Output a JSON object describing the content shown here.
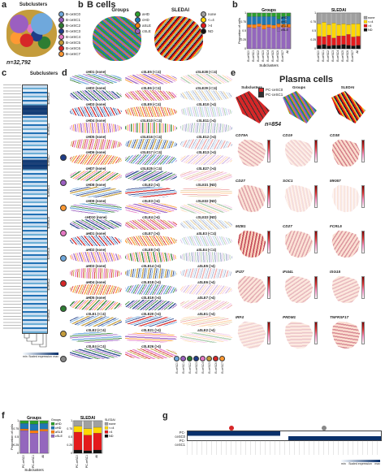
{
  "panels": {
    "a": {
      "label": "a",
      "title": "Subclusters",
      "n_cells": "n=32,792",
      "legend": [
        {
          "name": "B-ceSC0",
          "color": "#6fa8dc"
        },
        {
          "name": "B-ceSC1",
          "color": "#9b5fc0"
        },
        {
          "name": "B-ceSC2",
          "color": "#2e7d32"
        },
        {
          "name": "B-ceSC3",
          "color": "#1f3c88"
        },
        {
          "name": "B-ceSC4",
          "color": "#e377c2"
        },
        {
          "name": "B-ceSC5",
          "color": "#c49c3c"
        },
        {
          "name": "B-ceSC6",
          "color": "#d62728"
        },
        {
          "name": "B-ceSC7",
          "color": "#ff9933"
        }
      ],
      "cluster_labels": [
        "B-ceSC0",
        "B-ceSC1",
        "B-ceSC2",
        "B-ceSC3",
        "B-ceSC4",
        "B-ceSC5",
        "B-ceSC6",
        "B-ceSC7"
      ]
    },
    "b": {
      "label": "b",
      "header": "B cells",
      "groups_title": "Groups",
      "sledai_title": "SLEDAI",
      "groups_legend": [
        {
          "name": "aHD",
          "color": "#2ca02c"
        },
        {
          "name": "cHD",
          "color": "#1f77b4"
        },
        {
          "name": "aSLE",
          "color": "#ff7f0e"
        },
        {
          "name": "cSLE",
          "color": "#9467bd"
        }
      ],
      "sledai_legend": [
        {
          "name": "none",
          "color": "#a0a0a0"
        },
        {
          "name": "<=4",
          "color": "#ffd700"
        },
        {
          "name": ">4",
          "color": "#e41a1c"
        },
        {
          "name": "ND",
          "color": "#111111"
        }
      ]
    },
    "b2": {
      "label": "b",
      "groups_title": "Groups",
      "sledai_title": "SLEDAI",
      "ylabel": "Proportion of cells",
      "xlabel": "Subclusters"
    },
    "c": {
      "label": "c",
      "title": "Subclusters",
      "cluster_labels": [
        "B-ceSC3",
        "B-ceSC1",
        "B-ceSC7",
        "B-ceSC4",
        "B-ceSC0",
        "B-ceSC6",
        "B-ceSC2",
        "B-ceSC5"
      ],
      "circle_colors": [
        "#1f3c88",
        "#9b5fc0",
        "#ff9933",
        "#e377c2",
        "#6fa8dc",
        "#d62728",
        "#2e7d32",
        "#c49c3c",
        "#888888"
      ],
      "scale_min": "min",
      "scale_max": "max",
      "scale_label": "Scaled expression"
    },
    "d": {
      "label": "d",
      "cells": [
        "cHD1 (none)",
        "cSLE5 (<=4)",
        "cSLE28 (<=4)",
        "cHD2 (none)",
        "cSLE6 (<=4)",
        "cSLE29 (<=4)",
        "cHD3 (none)",
        "cSLE9 (<=4)",
        "cSLE10 (>4)",
        "cHD4 (none)",
        "cSLE10 (<=4)",
        "cSLE11 (>4)",
        "cHD5 (none)",
        "cSLE16 (<=4)",
        "cSLE12 (>4)",
        "cHD6 (none)",
        "cSLE17 (<=4)",
        "cSLE13 (>4)",
        "cHD7 (none)",
        "cSLE25 (<=4)",
        "cSLE27 (>4)",
        "cHD8 (none)",
        "cSLE2 (>4)",
        "cSLE31 (ND)",
        "cHD9 (none)",
        "cSLE3 (>4)",
        "cSLE32 (ND)",
        "cHD10 (none)",
        "cSLE4 (>4)",
        "cSLE33 (ND)",
        "aHD1 (none)",
        "cSLE7 (>4)",
        "aSLE3 (<=4)",
        "aHD2 (none)",
        "cSLE8 (>4)",
        "aSLE4 (<=4)",
        "aHD3 (none)",
        "cSLE14 (>4)",
        "aSLE5 (>4)",
        "aHD4 (none)",
        "cSLE18 (>4)",
        "aSLE6 (>4)",
        "aHD5 (none)",
        "cSLE19 (>4)",
        "aSLE7 (>4)",
        "cSLE1 (<=4)",
        "cSLE20 (>4)",
        "aSLE1 (>4)",
        "cSLE2 (<=4)",
        "cSLE21 (>4)",
        "aSLE2 (>4)",
        "cSLE4 (<=4)",
        "cSLE26 (>4)",
        ""
      ],
      "bottom_legend": [
        "B-ceSC0",
        "B-ceSC1",
        "B-ceSC2",
        "B-ceSC3",
        "B-ceSC4",
        "B-ceSC5",
        "B-ceSC6",
        "B-ceSC7"
      ]
    },
    "e": {
      "label": "e",
      "header": "Plasma cells",
      "subclusters_title": "Subclusters",
      "groups_title": "Groups",
      "sledai_title": "SLEDAI",
      "n_cells": "n=854",
      "subcluster_legend": [
        {
          "name": "PC-ceSC0",
          "color": "#d62728"
        },
        {
          "name": "PC-ceSC1",
          "color": "#333333"
        }
      ],
      "genes": [
        "CD79A",
        "CD19",
        "CD38",
        "CD27",
        "SOC1",
        "MKI67",
        "MZB1",
        "CD27",
        "FCRL5",
        "IFI27",
        "IFI44L",
        "ISG15",
        "IRF4",
        "PRDM1",
        "TNFRSF17"
      ]
    },
    "f": {
      "label": "f",
      "groups_title": "Groups",
      "sledai_title": "SLEDAI",
      "ylabel": "Proportion of cells",
      "xlabel": "Subclusters",
      "groups_legend_title": "Groups",
      "sledai_legend_title": "SLEDAI",
      "groups_legend": [
        {
          "name": "aHD",
          "color": "#2ca02c"
        },
        {
          "name": "cHD",
          "color": "#1f77b4"
        },
        {
          "name": "aSLE",
          "color": "#ff7f0e"
        },
        {
          "name": "cSLE",
          "color": "#9467bd"
        }
      ],
      "sledai_legend": [
        {
          "name": "none",
          "color": "#a0a0a0"
        },
        {
          "name": "<=4",
          "color": "#ffd700"
        },
        {
          "name": ">4",
          "color": "#e41a1c"
        },
        {
          "name": "ND",
          "color": "#111111"
        }
      ]
    },
    "g": {
      "label": "g",
      "row_labels": [
        "PC-ceSC0",
        "PC-ceSC1"
      ],
      "scale_min": "min",
      "scale_max": "max",
      "scale_label": "Scaled expression"
    }
  },
  "chart_data": [
    {
      "type": "bar",
      "panel": "b-groups",
      "title": "Groups",
      "ylabel": "Proportion of cells",
      "xlabel": "Subclusters",
      "ylim": [
        0,
        1
      ],
      "categories": [
        "B-ceSC0",
        "B-ceSC1",
        "B-ceSC2",
        "B-ceSC3",
        "B-ceSC4",
        "B-ceSC5",
        "B-ceSC6",
        "B-ceSC7",
        "All"
      ],
      "series": [
        {
          "name": "cSLE",
          "color": "#9467bd",
          "values": [
            0.6,
            0.58,
            0.62,
            0.55,
            0.6,
            0.57,
            0.64,
            0.6,
            0.6
          ]
        },
        {
          "name": "aSLE",
          "color": "#ff7f0e",
          "values": [
            0.08,
            0.1,
            0.08,
            0.12,
            0.08,
            0.09,
            0.06,
            0.09,
            0.09
          ]
        },
        {
          "name": "cHD",
          "color": "#1f77b4",
          "values": [
            0.22,
            0.22,
            0.2,
            0.23,
            0.22,
            0.24,
            0.2,
            0.21,
            0.22
          ]
        },
        {
          "name": "aHD",
          "color": "#2ca02c",
          "values": [
            0.1,
            0.1,
            0.1,
            0.1,
            0.1,
            0.1,
            0.1,
            0.1,
            0.09
          ]
        }
      ]
    },
    {
      "type": "bar",
      "panel": "b-sledai",
      "title": "SLEDAI",
      "ylim": [
        0,
        1
      ],
      "categories": [
        "B-ceSC0",
        "B-ceSC1",
        "B-ceSC2",
        "B-ceSC3",
        "B-ceSC4",
        "B-ceSC5",
        "B-ceSC6",
        "B-ceSC7",
        "All"
      ],
      "series": [
        {
          "name": "ND",
          "color": "#111111",
          "values": [
            0.1,
            0.12,
            0.08,
            0.1,
            0.1,
            0.12,
            0.1,
            0.08,
            0.1
          ]
        },
        {
          "name": ">4",
          "color": "#e41a1c",
          "values": [
            0.25,
            0.22,
            0.3,
            0.2,
            0.26,
            0.24,
            0.3,
            0.25,
            0.25
          ]
        },
        {
          "name": "<=4",
          "color": "#ffd700",
          "values": [
            0.35,
            0.4,
            0.3,
            0.42,
            0.32,
            0.34,
            0.28,
            0.37,
            0.35
          ]
        },
        {
          "name": "none",
          "color": "#a0a0a0",
          "values": [
            0.3,
            0.26,
            0.32,
            0.28,
            0.32,
            0.3,
            0.32,
            0.3,
            0.3
          ]
        }
      ]
    },
    {
      "type": "bar",
      "panel": "f-groups",
      "title": "Groups",
      "ylabel": "Proportion of cells",
      "xlabel": "Subclusters",
      "ylim": [
        0,
        1
      ],
      "categories": [
        "PC-ceSC0",
        "PC-ceSC1",
        "All"
      ],
      "series": [
        {
          "name": "cSLE",
          "color": "#9467bd",
          "values": [
            0.7,
            0.62,
            0.68
          ]
        },
        {
          "name": "aSLE",
          "color": "#ff7f0e",
          "values": [
            0.05,
            0.08,
            0.06
          ]
        },
        {
          "name": "cHD",
          "color": "#1f77b4",
          "values": [
            0.17,
            0.2,
            0.18
          ]
        },
        {
          "name": "aHD",
          "color": "#2ca02c",
          "values": [
            0.08,
            0.1,
            0.08
          ]
        }
      ]
    },
    {
      "type": "bar",
      "panel": "f-sledai",
      "title": "SLEDAI",
      "ylim": [
        0,
        1
      ],
      "categories": [
        "PC-ceSC0",
        "PC-ceSC1",
        "All"
      ],
      "series": [
        {
          "name": "ND",
          "color": "#111111",
          "values": [
            0.1,
            0.08,
            0.1
          ]
        },
        {
          "name": ">4",
          "color": "#e41a1c",
          "values": [
            0.55,
            0.48,
            0.52
          ]
        },
        {
          "name": "<=4",
          "color": "#ffd700",
          "values": [
            0.18,
            0.2,
            0.18
          ]
        },
        {
          "name": "none",
          "color": "#a0a0a0",
          "values": [
            0.17,
            0.24,
            0.2
          ]
        }
      ]
    }
  ]
}
